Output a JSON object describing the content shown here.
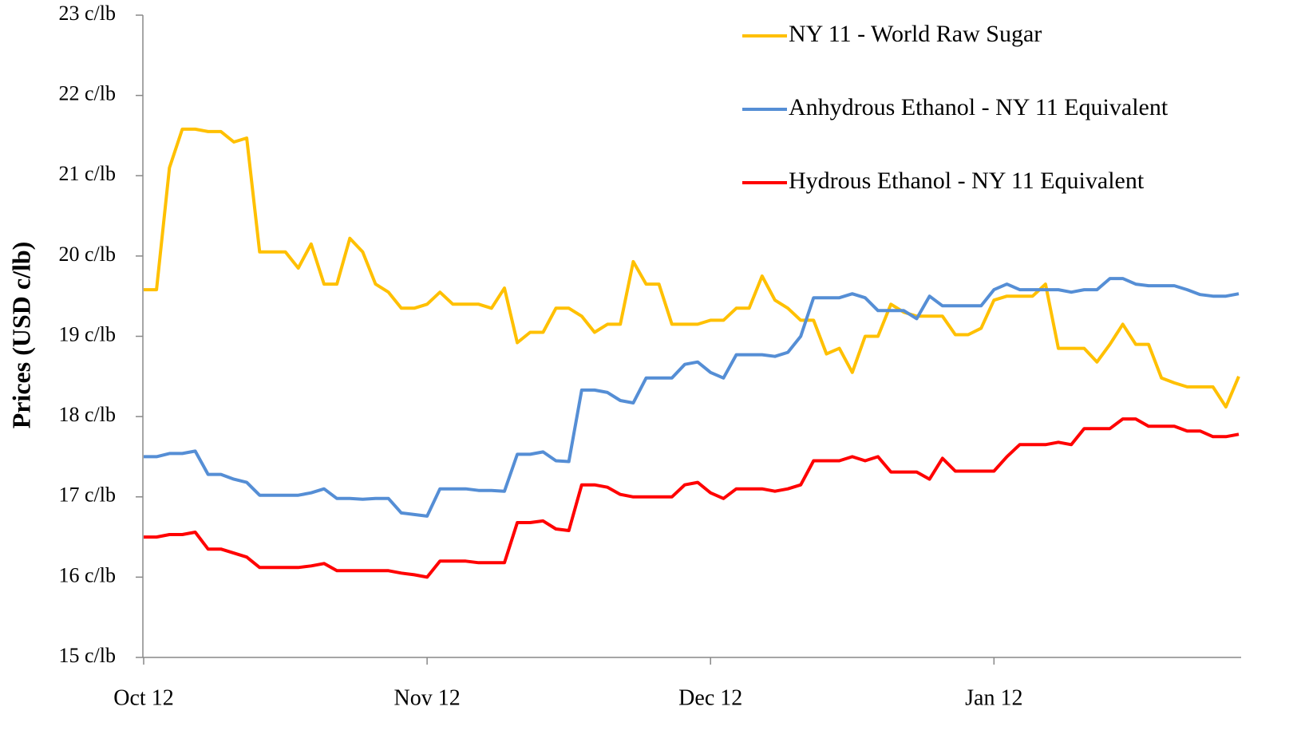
{
  "chart_data": {
    "type": "line",
    "y_label": "Prices (USD c/lb)",
    "categories": [
      "Oct 12",
      null,
      null,
      null,
      null,
      null,
      null,
      null,
      null,
      null,
      null,
      null,
      null,
      null,
      null,
      null,
      null,
      null,
      null,
      null,
      null,
      null,
      "Nov 12",
      null,
      null,
      null,
      null,
      null,
      null,
      null,
      null,
      null,
      null,
      null,
      null,
      null,
      null,
      null,
      null,
      null,
      null,
      null,
      null,
      null,
      "Dec 12",
      null,
      null,
      null,
      null,
      null,
      null,
      null,
      null,
      null,
      null,
      null,
      null,
      null,
      null,
      null,
      null,
      null,
      null,
      null,
      null,
      null,
      "Jan 12",
      null,
      null,
      null,
      null,
      null,
      null,
      null,
      null,
      null,
      null,
      null,
      null,
      null,
      null,
      null,
      null,
      null,
      null,
      null
    ],
    "series": [
      {
        "name": "NY 11 - World Raw Sugar",
        "color": "#FFC000",
        "values": [
          19.58,
          19.58,
          21.1,
          21.58,
          21.58,
          21.55,
          21.55,
          21.42,
          21.47,
          20.05,
          20.05,
          20.05,
          19.85,
          20.15,
          19.65,
          19.65,
          20.22,
          20.05,
          19.65,
          19.55,
          19.35,
          19.35,
          19.4,
          19.55,
          19.4,
          19.4,
          19.4,
          19.35,
          19.6,
          18.92,
          19.05,
          19.05,
          19.35,
          19.35,
          19.25,
          19.05,
          19.15,
          19.15,
          19.93,
          19.65,
          19.65,
          19.15,
          19.15,
          19.15,
          19.2,
          19.2,
          19.35,
          19.35,
          19.75,
          19.45,
          19.35,
          19.2,
          19.2,
          18.78,
          18.85,
          18.55,
          19.0,
          19.0,
          19.4,
          19.3,
          19.25,
          19.25,
          19.25,
          19.02,
          19.02,
          19.1,
          19.45,
          19.5,
          19.5,
          19.5,
          19.65,
          18.85,
          18.85,
          18.85,
          18.68,
          18.9,
          19.15,
          18.9,
          18.9,
          18.48,
          18.42,
          18.37,
          18.37,
          18.37,
          18.12,
          18.5
        ]
      },
      {
        "name": "Anhydrous Ethanol - NY 11 Equivalent",
        "color": "#558ED5",
        "values": [
          17.5,
          17.5,
          17.54,
          17.54,
          17.57,
          17.28,
          17.28,
          17.22,
          17.18,
          17.02,
          17.02,
          17.02,
          17.02,
          17.05,
          17.1,
          16.98,
          16.98,
          16.97,
          16.98,
          16.98,
          16.8,
          16.78,
          16.76,
          17.1,
          17.1,
          17.1,
          17.08,
          17.08,
          17.07,
          17.53,
          17.53,
          17.56,
          17.45,
          17.44,
          18.33,
          18.33,
          18.3,
          18.2,
          18.17,
          18.48,
          18.48,
          18.48,
          18.65,
          18.68,
          18.55,
          18.48,
          18.77,
          18.77,
          18.77,
          18.75,
          18.8,
          19.0,
          19.48,
          19.48,
          19.48,
          19.53,
          19.48,
          19.32,
          19.32,
          19.32,
          19.22,
          19.5,
          19.38,
          19.38,
          19.38,
          19.38,
          19.58,
          19.65,
          19.58,
          19.58,
          19.58,
          19.58,
          19.55,
          19.58,
          19.58,
          19.72,
          19.72,
          19.65,
          19.63,
          19.63,
          19.63,
          19.58,
          19.52,
          19.5,
          19.5,
          19.53
        ]
      },
      {
        "name": "Hydrous Ethanol - NY 11 Equivalent",
        "color": "#FF0000",
        "values": [
          16.5,
          16.5,
          16.53,
          16.53,
          16.56,
          16.35,
          16.35,
          16.3,
          16.25,
          16.12,
          16.12,
          16.12,
          16.12,
          16.14,
          16.17,
          16.08,
          16.08,
          16.08,
          16.08,
          16.08,
          16.05,
          16.03,
          16.0,
          16.2,
          16.2,
          16.2,
          16.18,
          16.18,
          16.18,
          16.68,
          16.68,
          16.7,
          16.6,
          16.58,
          17.15,
          17.15,
          17.12,
          17.03,
          17.0,
          17.0,
          17.0,
          17.0,
          17.15,
          17.18,
          17.05,
          16.98,
          17.1,
          17.1,
          17.1,
          17.07,
          17.1,
          17.15,
          17.45,
          17.45,
          17.45,
          17.5,
          17.45,
          17.5,
          17.31,
          17.31,
          17.31,
          17.22,
          17.48,
          17.32,
          17.32,
          17.32,
          17.32,
          17.5,
          17.65,
          17.65,
          17.65,
          17.68,
          17.65,
          17.85,
          17.85,
          17.85,
          17.97,
          17.97,
          17.88,
          17.88,
          17.88,
          17.82,
          17.82,
          17.75,
          17.75,
          17.78
        ]
      }
    ],
    "ylim": [
      15,
      23
    ],
    "yticks": [
      {
        "value": 15,
        "label": "15 c/lb"
      },
      {
        "value": 16,
        "label": "16 c/lb"
      },
      {
        "value": 17,
        "label": "17 c/lb"
      },
      {
        "value": 18,
        "label": "18 c/lb"
      },
      {
        "value": 19,
        "label": "19 c/lb"
      },
      {
        "value": 20,
        "label": "20 c/lb"
      },
      {
        "value": 21,
        "label": "21 c/lb"
      },
      {
        "value": 22,
        "label": "22 c/lb"
      },
      {
        "value": 23,
        "label": "23 c/lb"
      }
    ],
    "grid": false,
    "legend": "top-right"
  }
}
